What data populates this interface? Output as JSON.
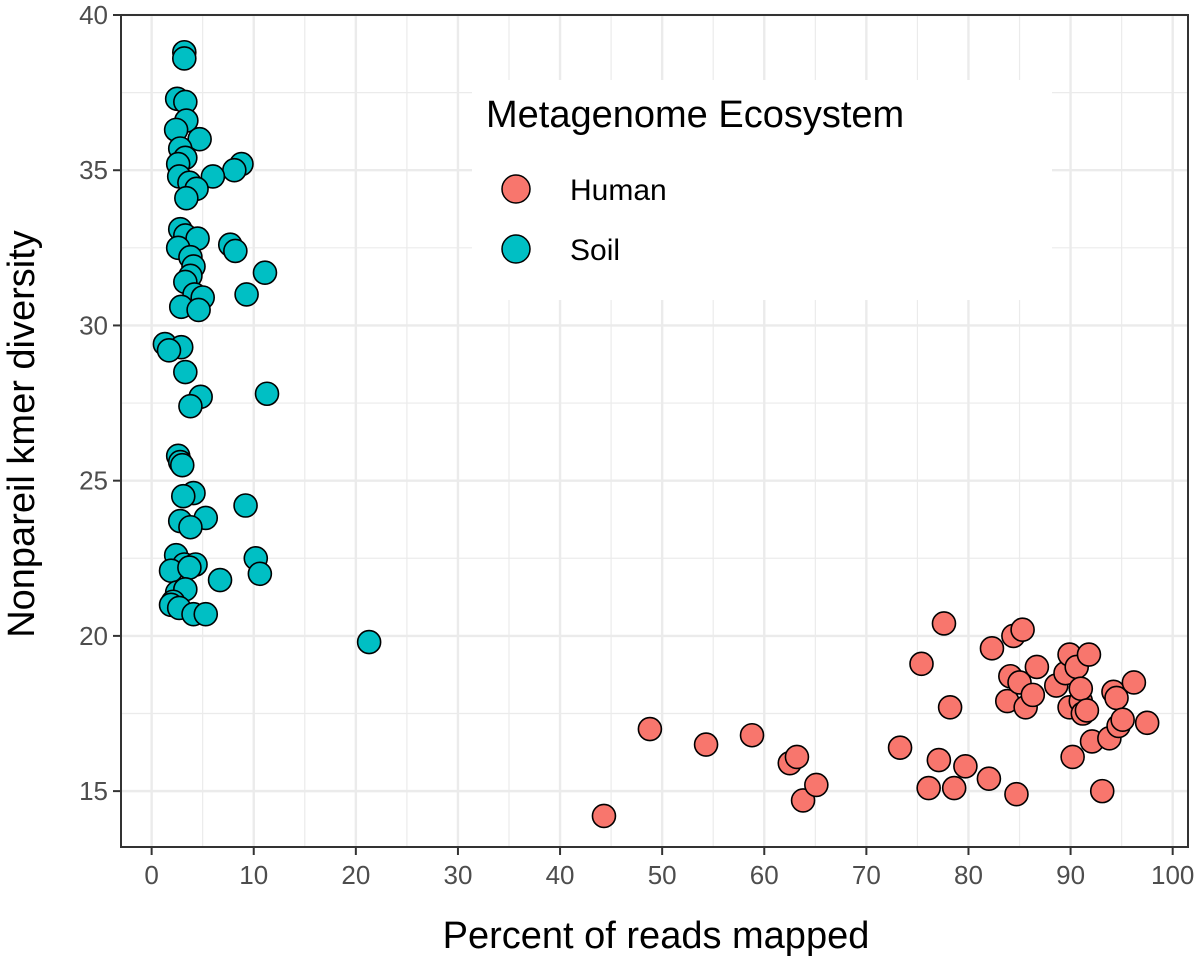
{
  "chart_data": {
    "type": "scatter",
    "xlabel": "Percent of reads mapped",
    "ylabel": "Nonpareil kmer diversity",
    "xlim": [
      -3,
      101.5
    ],
    "ylim": [
      13.2,
      40
    ],
    "x_ticks": [
      0,
      10,
      20,
      30,
      40,
      50,
      60,
      70,
      80,
      90,
      100
    ],
    "y_ticks": [
      15,
      20,
      25,
      30,
      35,
      40
    ],
    "x_tick_labels": [
      "0",
      "10",
      "20",
      "30",
      "40",
      "50",
      "60",
      "70",
      "80",
      "90",
      "100"
    ],
    "y_tick_labels": [
      "15",
      "20",
      "25",
      "30",
      "35",
      "40"
    ],
    "grid": true,
    "legend": {
      "title": "Metagenome Ecosystem",
      "position": "top-right",
      "entries": [
        "Human",
        "Soil"
      ]
    },
    "colors": {
      "Human": "#F8766D",
      "Soil": "#00BFC4",
      "outline": "#000000",
      "grid": "#ebebeb",
      "panel_border": "#333333"
    },
    "series": [
      {
        "name": "Human",
        "color": "#F8766D",
        "points": [
          [
            44.3,
            14.2
          ],
          [
            48.8,
            17.0
          ],
          [
            54.3,
            16.5
          ],
          [
            58.8,
            16.8
          ],
          [
            62.5,
            15.9
          ],
          [
            63.2,
            16.1
          ],
          [
            63.8,
            14.7
          ],
          [
            65.1,
            15.2
          ],
          [
            73.3,
            16.4
          ],
          [
            75.4,
            19.1
          ],
          [
            76.1,
            15.1
          ],
          [
            77.1,
            16.0
          ],
          [
            77.6,
            20.4
          ],
          [
            78.2,
            17.7
          ],
          [
            78.6,
            15.1
          ],
          [
            79.7,
            15.8
          ],
          [
            82.0,
            15.4
          ],
          [
            82.3,
            19.6
          ],
          [
            83.8,
            17.9
          ],
          [
            84.1,
            18.7
          ],
          [
            84.4,
            20.0
          ],
          [
            84.7,
            14.9
          ],
          [
            85.0,
            18.5
          ],
          [
            85.3,
            20.2
          ],
          [
            85.6,
            17.7
          ],
          [
            86.3,
            18.1
          ],
          [
            86.7,
            19.0
          ],
          [
            88.6,
            18.4
          ],
          [
            89.5,
            18.8
          ],
          [
            89.9,
            19.4
          ],
          [
            89.9,
            17.7
          ],
          [
            90.2,
            16.1
          ],
          [
            90.6,
            19.0
          ],
          [
            91.0,
            17.9
          ],
          [
            91.0,
            18.3
          ],
          [
            91.2,
            17.5
          ],
          [
            91.6,
            17.6
          ],
          [
            91.8,
            19.4
          ],
          [
            92.1,
            16.6
          ],
          [
            93.1,
            15.0
          ],
          [
            93.8,
            16.7
          ],
          [
            94.2,
            18.2
          ],
          [
            94.5,
            18.0
          ],
          [
            94.7,
            17.1
          ],
          [
            95.1,
            17.3
          ],
          [
            96.2,
            18.5
          ],
          [
            97.5,
            17.2
          ]
        ]
      },
      {
        "name": "Soil",
        "color": "#00BFC4",
        "points": [
          [
            3.2,
            38.8
          ],
          [
            3.2,
            38.6
          ],
          [
            2.5,
            37.3
          ],
          [
            3.3,
            37.2
          ],
          [
            3.4,
            36.6
          ],
          [
            2.4,
            36.3
          ],
          [
            4.7,
            36.0
          ],
          [
            2.8,
            35.7
          ],
          [
            3.3,
            35.4
          ],
          [
            2.6,
            35.2
          ],
          [
            8.8,
            35.2
          ],
          [
            8.1,
            35.0
          ],
          [
            2.7,
            34.8
          ],
          [
            6.0,
            34.8
          ],
          [
            3.7,
            34.6
          ],
          [
            4.4,
            34.4
          ],
          [
            3.4,
            34.1
          ],
          [
            2.8,
            33.1
          ],
          [
            3.3,
            32.9
          ],
          [
            4.5,
            32.8
          ],
          [
            7.7,
            32.6
          ],
          [
            8.2,
            32.4
          ],
          [
            2.6,
            32.5
          ],
          [
            3.8,
            32.2
          ],
          [
            4.1,
            31.9
          ],
          [
            3.8,
            31.6
          ],
          [
            11.1,
            31.7
          ],
          [
            3.3,
            31.4
          ],
          [
            9.3,
            31.0
          ],
          [
            4.2,
            31.0
          ],
          [
            5.0,
            30.9
          ],
          [
            2.9,
            30.6
          ],
          [
            4.6,
            30.5
          ],
          [
            1.3,
            29.4
          ],
          [
            2.9,
            29.3
          ],
          [
            1.7,
            29.2
          ],
          [
            3.3,
            28.5
          ],
          [
            11.3,
            27.8
          ],
          [
            4.8,
            27.7
          ],
          [
            3.8,
            27.4
          ],
          [
            2.6,
            25.8
          ],
          [
            2.8,
            25.6
          ],
          [
            3.0,
            25.5
          ],
          [
            4.1,
            24.6
          ],
          [
            3.1,
            24.5
          ],
          [
            9.2,
            24.2
          ],
          [
            5.3,
            23.8
          ],
          [
            2.8,
            23.7
          ],
          [
            3.8,
            23.5
          ],
          [
            2.4,
            22.6
          ],
          [
            10.2,
            22.5
          ],
          [
            3.2,
            22.3
          ],
          [
            4.3,
            22.3
          ],
          [
            1.9,
            22.1
          ],
          [
            3.7,
            22.2
          ],
          [
            10.6,
            22.0
          ],
          [
            6.7,
            21.8
          ],
          [
            2.5,
            21.4
          ],
          [
            3.3,
            21.5
          ],
          [
            2.1,
            21.1
          ],
          [
            1.9,
            21.0
          ],
          [
            2.7,
            20.9
          ],
          [
            4.1,
            20.7
          ],
          [
            5.3,
            20.7
          ],
          [
            21.3,
            19.8
          ]
        ]
      }
    ]
  }
}
